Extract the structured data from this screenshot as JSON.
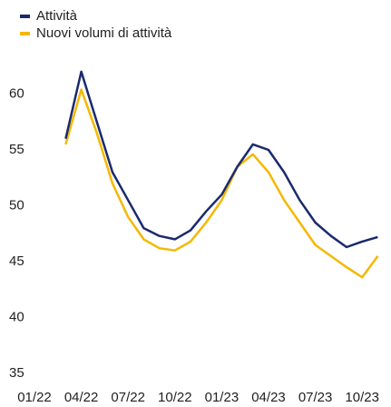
{
  "chart_data": {
    "type": "line",
    "categories": [
      "01/22",
      null,
      null,
      "04/22",
      null,
      null,
      "07/22",
      null,
      null,
      "10/22",
      null,
      null,
      "01/23",
      null,
      null,
      "04/23",
      null,
      null,
      "07/23",
      null,
      null,
      "10/23",
      null
    ],
    "series": [
      {
        "name": "Attività",
        "color": "#1a2a6c",
        "values": [
          null,
          null,
          56.0,
          62.0,
          57.5,
          53.0,
          50.5,
          48.0,
          47.3,
          47.0,
          47.8,
          49.5,
          51.0,
          53.5,
          55.5,
          55.0,
          53.0,
          50.5,
          48.5,
          47.3,
          46.3,
          46.8,
          47.2
        ]
      },
      {
        "name": "Nuovi volumi di attività",
        "color": "#f5b800",
        "values": [
          null,
          null,
          55.5,
          60.4,
          56.5,
          52.0,
          49.0,
          47.0,
          46.2,
          46.0,
          46.8,
          48.5,
          50.5,
          53.5,
          54.6,
          53.0,
          50.5,
          48.5,
          46.5,
          45.5,
          44.5,
          43.6,
          45.5
        ]
      }
    ],
    "ylim": [
      35,
      63
    ],
    "yticks": [
      35,
      40,
      45,
      50,
      55,
      60
    ],
    "grid": false,
    "legend": "top-left"
  }
}
